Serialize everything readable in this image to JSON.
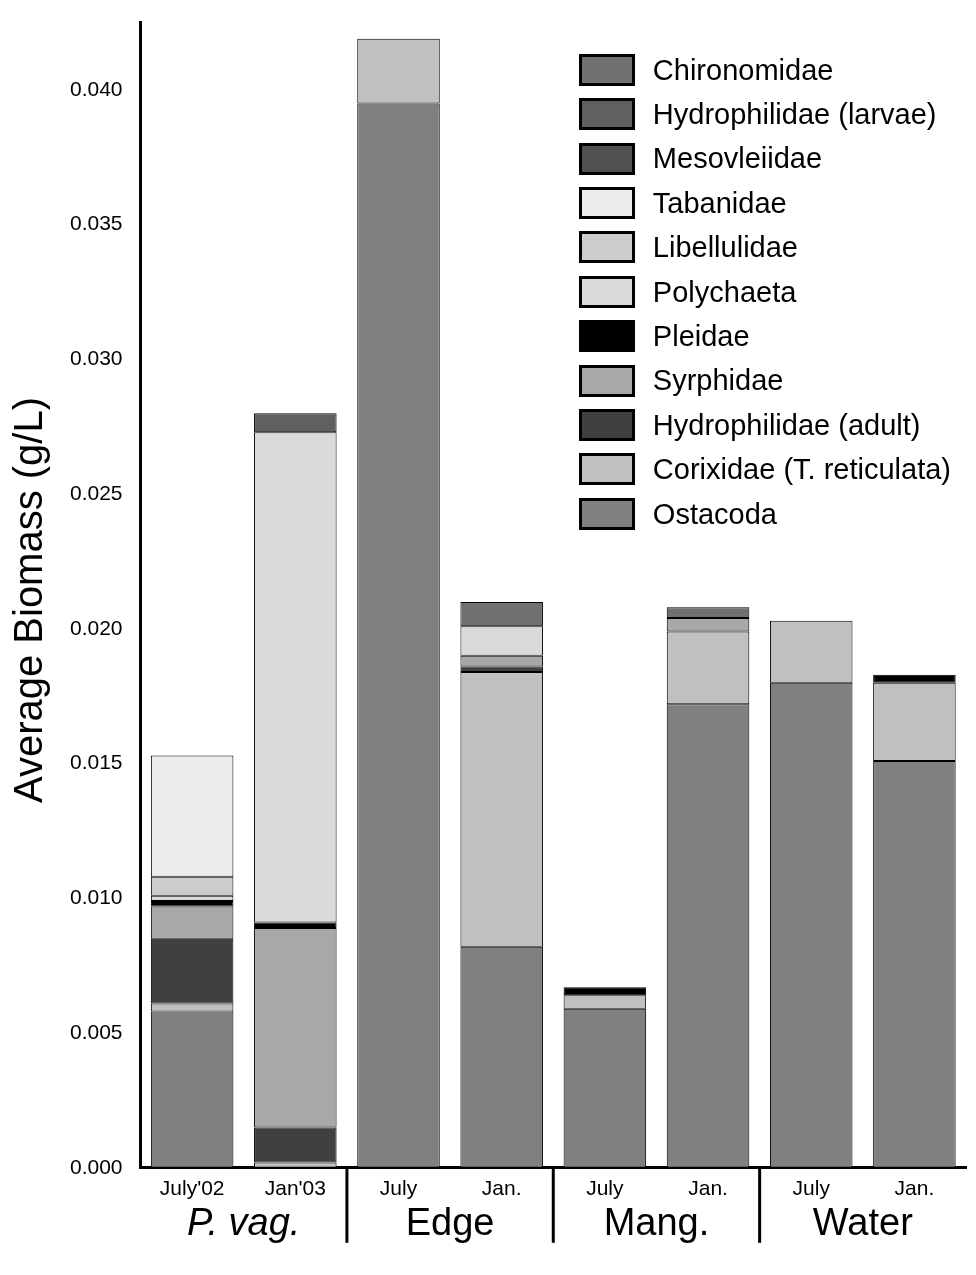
{
  "chart_data": {
    "type": "bar",
    "stacked": true,
    "ylabel": "Average Biomass (g/L)",
    "categories": [
      "July'02",
      "Jan'03",
      "July",
      "Jan.",
      "July",
      "Jan.",
      "July",
      "Jan."
    ],
    "annotations": [
      "P. vag.",
      "Edge",
      "Mang.",
      "Water"
    ],
    "ylim": [
      0,
      0.0425
    ],
    "yticks": [
      {
        "value": 0,
        "label": "0.000"
      },
      {
        "value": 0.005,
        "label": "0.005"
      },
      {
        "value": 0.01,
        "label": "0.010"
      },
      {
        "value": 0.015,
        "label": "0.015"
      },
      {
        "value": 0.02,
        "label": "0.020"
      },
      {
        "value": 0.025,
        "label": "0.025"
      },
      {
        "value": 0.03,
        "label": "0.030"
      },
      {
        "value": 0.035,
        "label": "0.035"
      },
      {
        "value": 0.04,
        "label": "0.040"
      }
    ],
    "grid": false,
    "legend": "top right",
    "series": [
      {
        "name": "Ostacoda",
        "color": "#808080",
        "values": [
          0.0058,
          null,
          0.0395,
          0.0082,
          0.0059,
          0.0172,
          0.018,
          0.0151
        ]
      },
      {
        "name": "Corixidae (T. reticulata)",
        "color": "#c0c0c0",
        "values": [
          0.0003,
          0.0002,
          0.0024,
          0.0102,
          0.0005,
          0.0027,
          0.0023,
          0.0029
        ]
      },
      {
        "name": "Hydrophilidae (adult)",
        "color": "#404040",
        "values": [
          0.0024,
          0.0013,
          null,
          0.0002,
          null,
          null,
          null,
          null
        ]
      },
      {
        "name": "Syrphidae",
        "color": "#a8a8a8",
        "values": [
          0.0012,
          0.0074,
          null,
          0.0004,
          null,
          0.0005,
          null,
          null
        ]
      },
      {
        "name": "Pleidae",
        "color": "#000000",
        "values": [
          0.0002,
          0.0002,
          null,
          null,
          0.0003,
          null,
          null,
          0.0003
        ]
      },
      {
        "name": "Polychaeta",
        "color": "#dadada",
        "values": [
          0.0002,
          0.0182,
          null,
          0.0011,
          null,
          null,
          null,
          null
        ]
      },
      {
        "name": "Libellulidae",
        "color": "#cccccc",
        "values": [
          0.0007,
          null,
          null,
          null,
          null,
          null,
          null,
          null
        ]
      },
      {
        "name": "Tabanidae",
        "color": "#ebebeb",
        "values": [
          0.0045,
          null,
          null,
          null,
          null,
          null,
          null,
          null
        ]
      },
      {
        "name": "Mesovleiidae",
        "color": "#505050",
        "values": [
          null,
          null,
          null,
          null,
          null,
          null,
          null,
          null
        ]
      },
      {
        "name": "Hydrophilidae (larvae)",
        "color": "#606060",
        "values": [
          null,
          0.0007,
          null,
          null,
          null,
          null,
          null,
          null
        ]
      },
      {
        "name": "Chironomidae",
        "color": "#707070",
        "values": [
          null,
          null,
          null,
          0.0009,
          null,
          0.0004,
          null,
          null
        ]
      }
    ]
  }
}
